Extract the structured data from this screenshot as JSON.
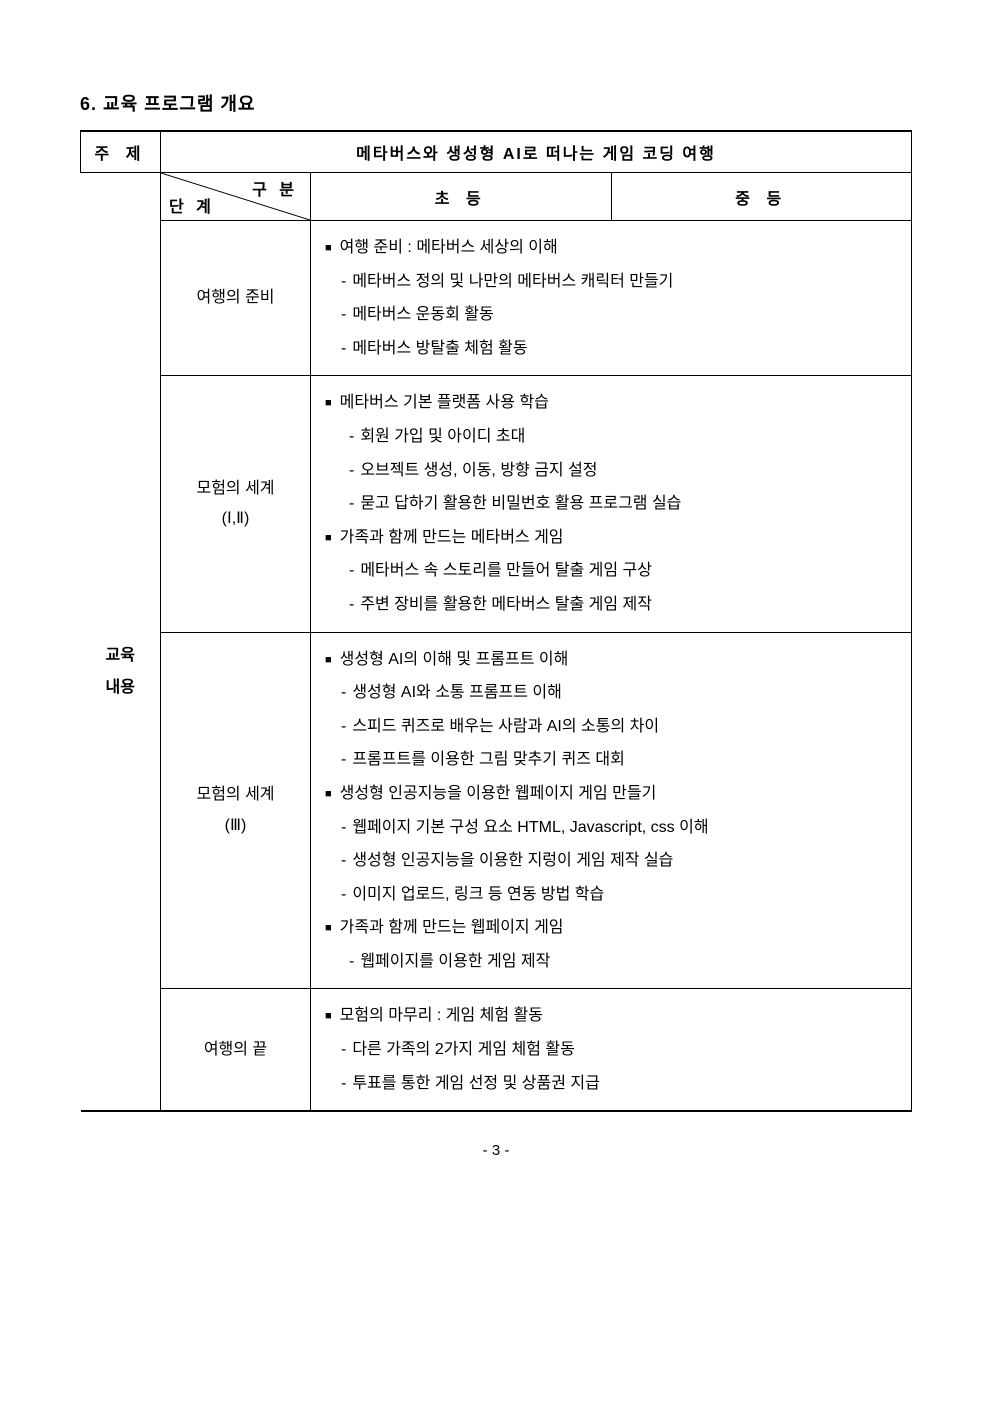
{
  "section_title": "6. 교육 프로그램 개요",
  "table": {
    "topic_label": "주 제",
    "topic_title": "메타버스와 생성형 AI로 떠나는 게임 코딩 여행",
    "diag_top": "구 분",
    "diag_bottom": "단 계",
    "col_elementary": "초 등",
    "col_middle": "중 등",
    "edu_label_1": "교육",
    "edu_label_2": "내용",
    "stages": {
      "s1": {
        "name": "여행의 준비"
      },
      "s2": {
        "name_l1": "모험의 세계",
        "name_l2": "(Ⅰ,Ⅱ)"
      },
      "s3": {
        "name_l1": "모험의 세계",
        "name_l2": "(Ⅲ)"
      },
      "s4": {
        "name": "여행의 끝"
      }
    },
    "content": {
      "s1": [
        {
          "type": "bullet",
          "text": "여행 준비 : 메타버스 세상의 이해"
        },
        {
          "type": "dash",
          "text": "메타버스 정의 및 나만의 메타버스 캐릭터 만들기"
        },
        {
          "type": "dash",
          "text": "메타버스 운동회 활동"
        },
        {
          "type": "dash",
          "text": "메타버스 방탈출 체험 활동"
        }
      ],
      "s2": [
        {
          "type": "bullet",
          "text": "메타버스 기본 플랫폼 사용 학습"
        },
        {
          "type": "dash2",
          "text": "회원 가입 및 아이디 초대"
        },
        {
          "type": "dash2",
          "text": "오브젝트 생성, 이동, 방향 금지 설정"
        },
        {
          "type": "dash2",
          "text": "묻고 답하기 활용한 비밀번호 활용 프로그램 실습"
        },
        {
          "type": "bullet",
          "text": "가족과 함께 만드는 메타버스 게임"
        },
        {
          "type": "dash2",
          "text": "메타버스 속 스토리를 만들어 탈출 게임 구상"
        },
        {
          "type": "dash2",
          "text": "주변 장비를 활용한 메타버스 탈출 게임 제작"
        }
      ],
      "s3": [
        {
          "type": "bullet",
          "text": "생성형 AI의 이해 및 프롬프트 이해"
        },
        {
          "type": "dash",
          "text": "생성형 AI와 소통 프롬프트 이해"
        },
        {
          "type": "dash",
          "text": "스피드 퀴즈로 배우는 사람과 AI의 소통의 차이"
        },
        {
          "type": "dash",
          "text": "프롬프트를 이용한 그림 맞추기 퀴즈 대회"
        },
        {
          "type": "bullet",
          "text": "생성형 인공지능을 이용한 웹페이지 게임 만들기"
        },
        {
          "type": "dash",
          "text": "웹페이지 기본 구성 요소 HTML, Javascript, css 이해"
        },
        {
          "type": "dash",
          "text": "생성형 인공지능을 이용한 지렁이 게임 제작 실습"
        },
        {
          "type": "dash",
          "text": "이미지 업로드, 링크 등 연동 방법 학습"
        },
        {
          "type": "bullet",
          "text": "가족과 함께 만드는 웹페이지 게임"
        },
        {
          "type": "dash2",
          "text": "웹페이지를 이용한 게임 제작"
        }
      ],
      "s4": [
        {
          "type": "bullet",
          "text": "모험의 마무리 : 게임 체험 활동"
        },
        {
          "type": "dash",
          "text": "다른 가족의 2가지 게임 체험 활동"
        },
        {
          "type": "dash",
          "text": "투표를 통한 게임 선정 및 상품권 지급"
        }
      ]
    }
  },
  "page_number": "- 3 -"
}
